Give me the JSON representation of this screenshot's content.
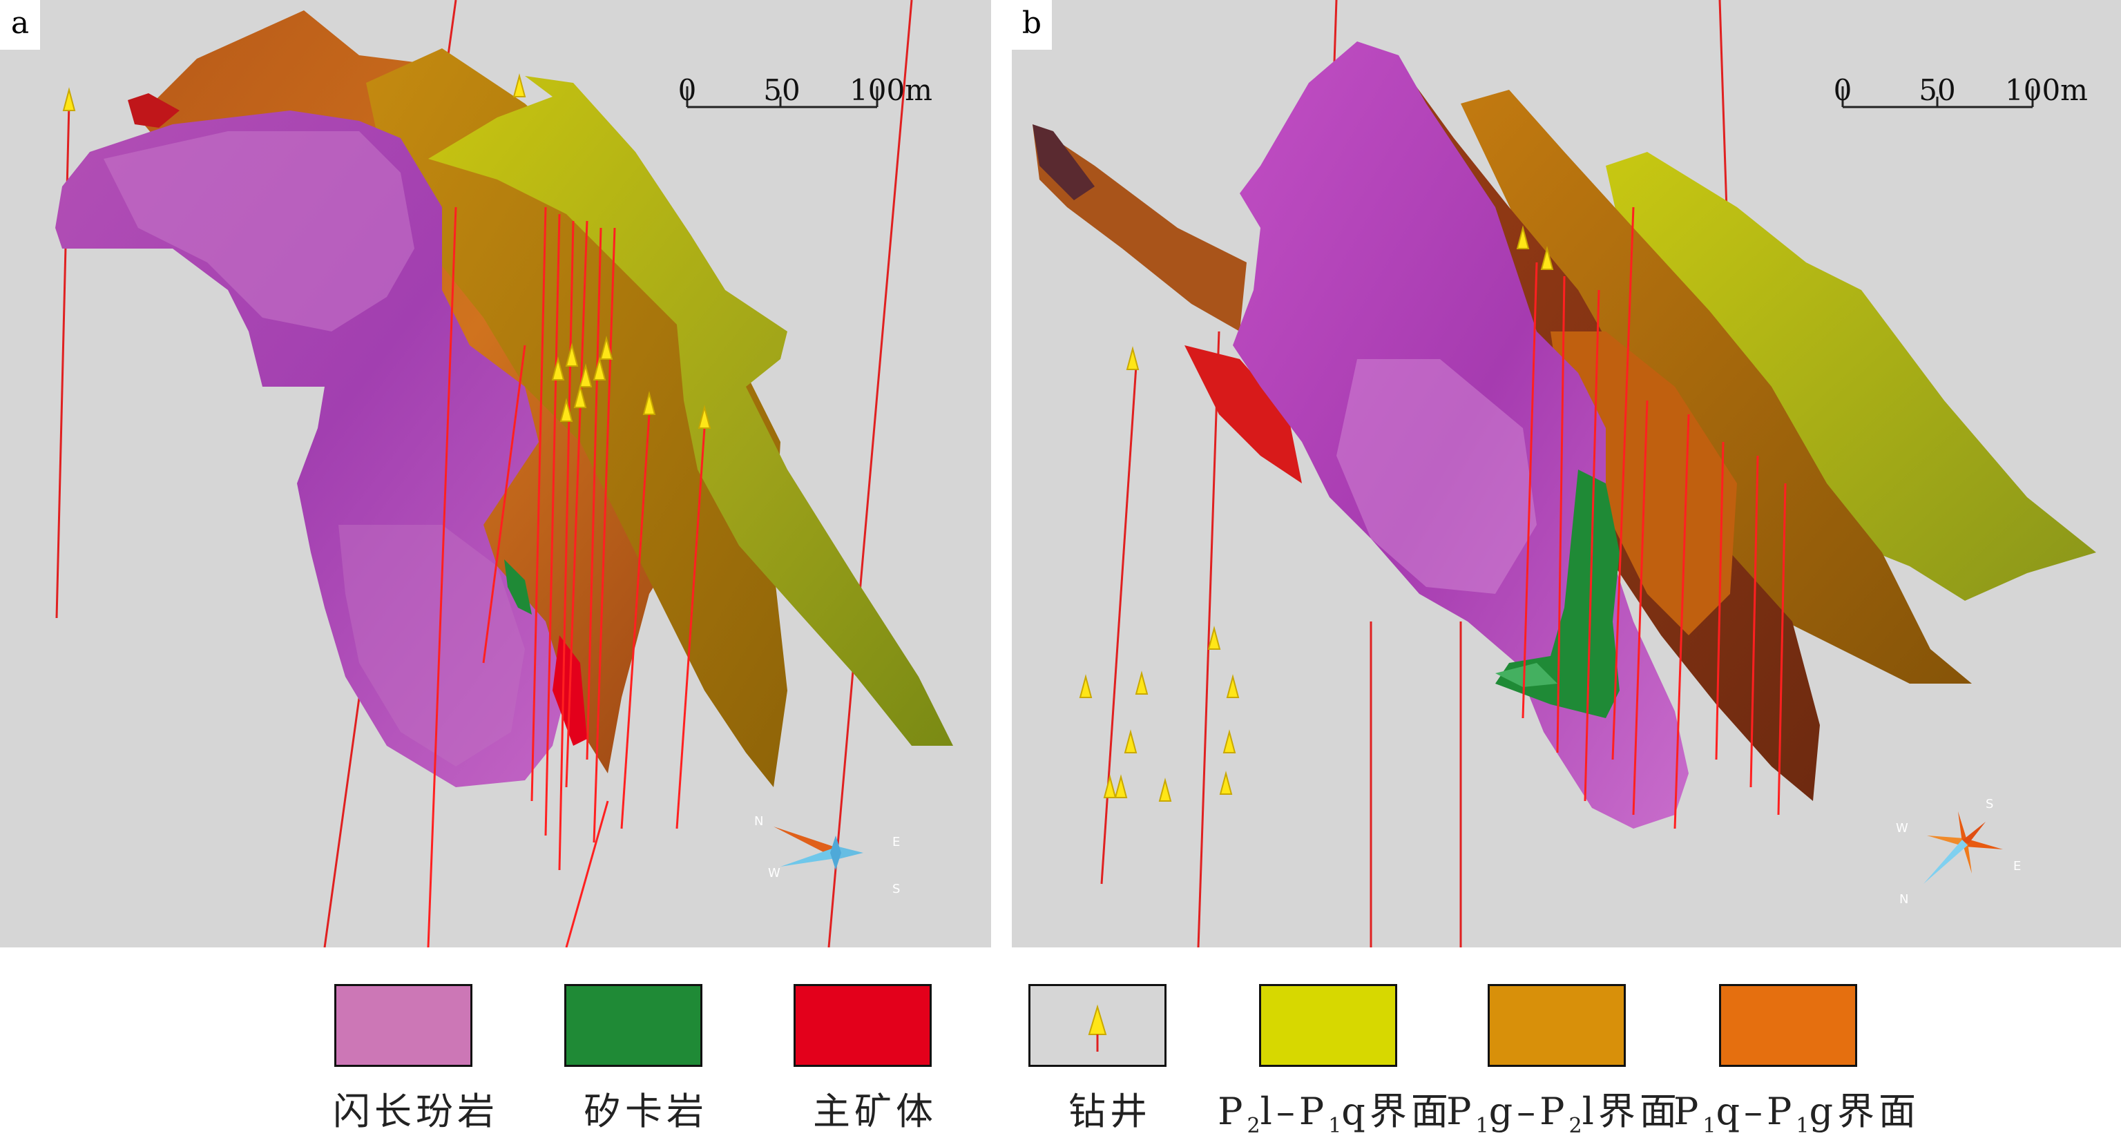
{
  "panels": [
    {
      "label": "a",
      "scalebar": {
        "ticks": [
          "0",
          "50",
          "100m"
        ]
      },
      "compass": {
        "labels": [
          "N",
          "W",
          "E",
          "S"
        ]
      }
    },
    {
      "label": "b",
      "scalebar": {
        "ticks": [
          "0",
          "50",
          "100m"
        ]
      },
      "compass": {
        "labels": [
          "S",
          "W",
          "E",
          "N"
        ]
      }
    }
  ],
  "legend": [
    {
      "id": "diorite",
      "text": "闪长玢岩",
      "color": "#cc77b6"
    },
    {
      "id": "skarn",
      "text": "矽卡岩",
      "color": "#1f8a36"
    },
    {
      "id": "main-orebody",
      "text": "主矿体",
      "color": "#e3001b"
    },
    {
      "id": "drill-well",
      "text": "钻井",
      "color": "#d6d6d6",
      "icon": "drill-rig-icon"
    },
    {
      "id": "p2l-p1q-interface",
      "color": "#d7d800",
      "parts": {
        "a": "P",
        "a_sub": "2",
        "b": "l–P",
        "b_sub": "1",
        "c": "q界面"
      }
    },
    {
      "id": "p1g-p2l-interface",
      "color": "#d8900a",
      "parts": {
        "a": "P",
        "a_sub": "1",
        "b": "g–P",
        "b_sub": "2",
        "c": "l界面"
      }
    },
    {
      "id": "p1q-p1g-interface",
      "color": "#e56f0f",
      "parts": {
        "a": "P",
        "a_sub": "1",
        "b": "q–P",
        "b_sub": "1",
        "c": "g界面"
      }
    }
  ]
}
